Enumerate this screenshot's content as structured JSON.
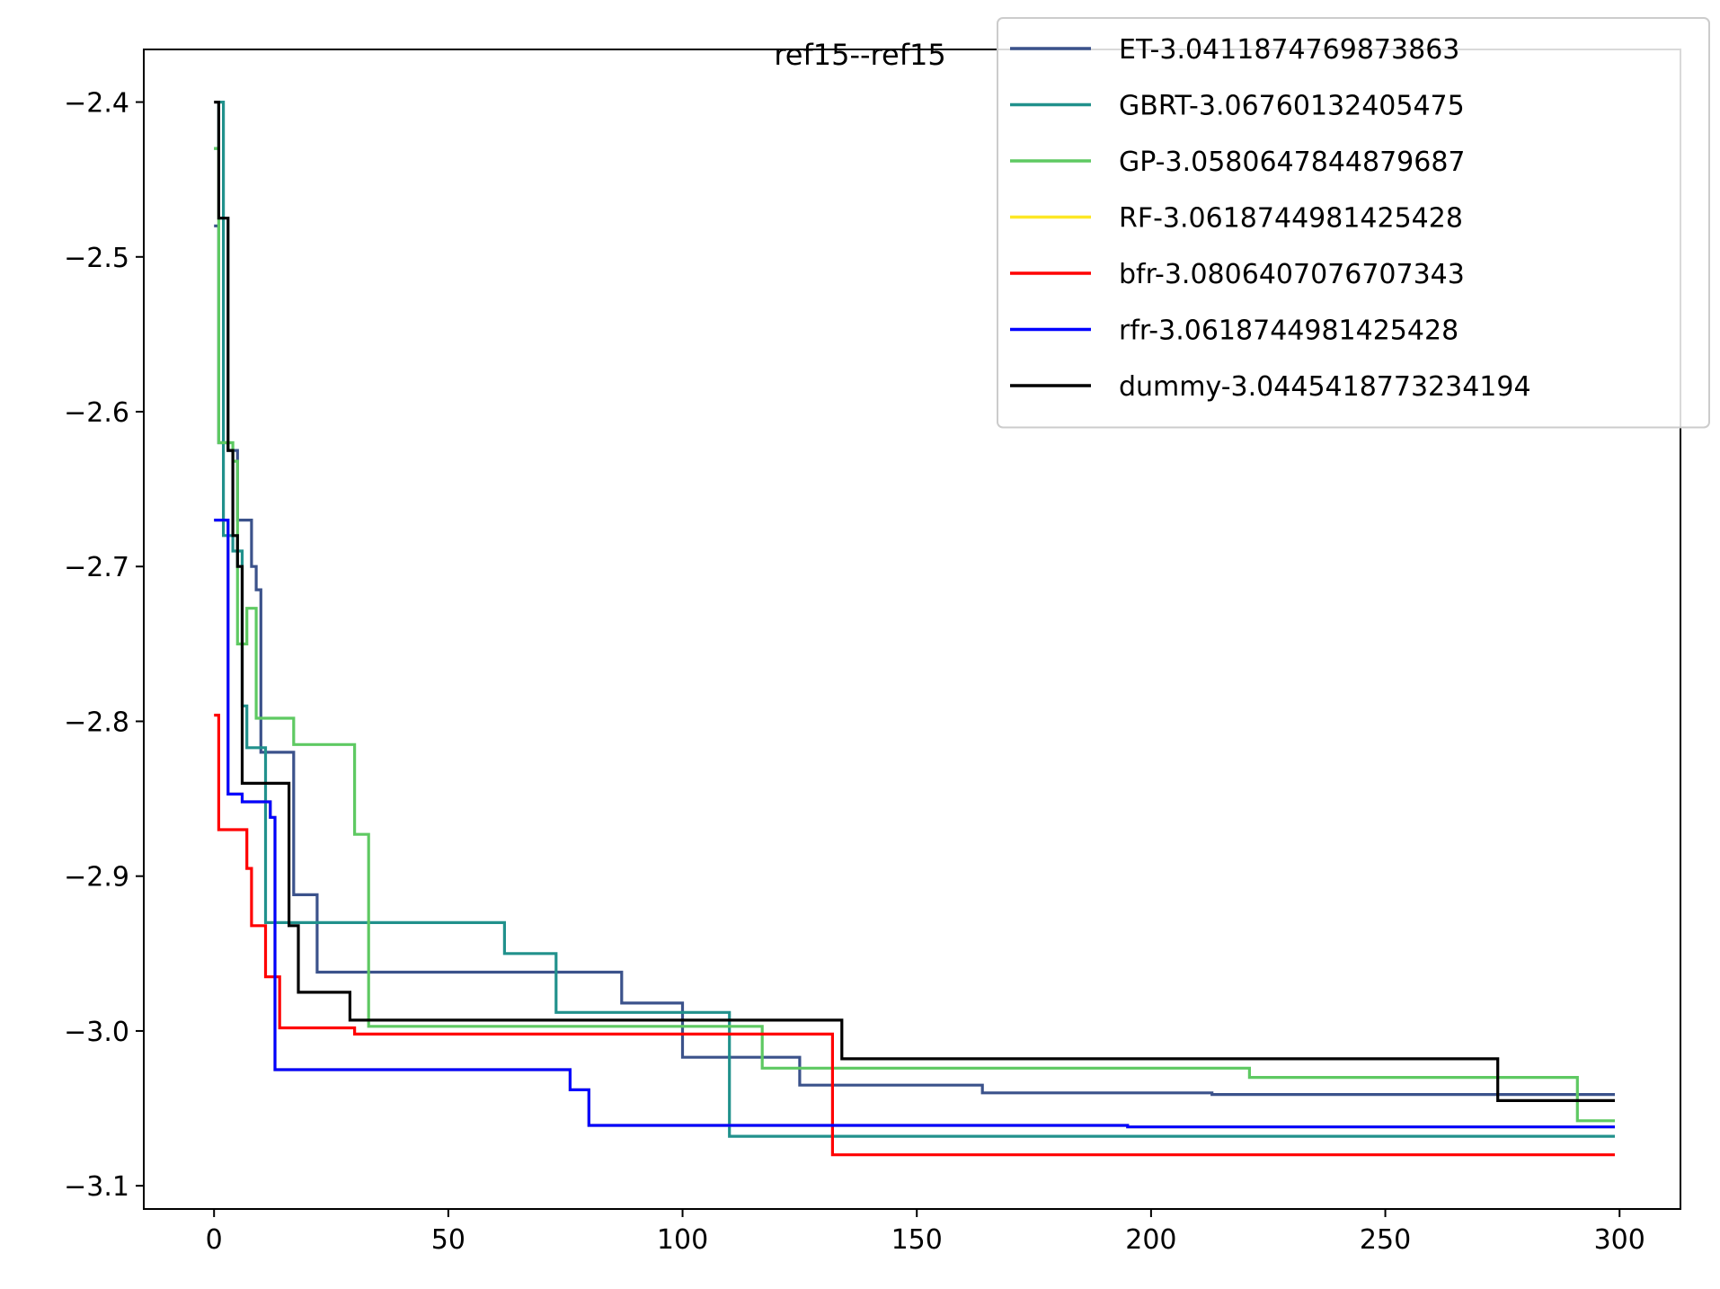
{
  "chart_data": {
    "type": "line",
    "title": "ref15--ref15",
    "xlabel": "",
    "ylabel": "",
    "xlim": [
      -15,
      313
    ],
    "ylim": [
      -3.115,
      -2.366
    ],
    "xticks": [
      0,
      50,
      100,
      150,
      200,
      250,
      300
    ],
    "xtick_labels": [
      "0",
      "50",
      "100",
      "150",
      "200",
      "250",
      "300"
    ],
    "yticks": [
      -2.4,
      -2.5,
      -2.6,
      -2.7,
      -2.8,
      -2.9,
      -3.0,
      -3.1
    ],
    "ytick_labels": [
      "−2.4",
      "−2.5",
      "−2.6",
      "−2.7",
      "−2.8",
      "−2.9",
      "−3.0",
      "−3.1"
    ],
    "grid": false,
    "legend_position": "top-right",
    "series": [
      {
        "name": "ET-3.0411874769873863",
        "color": "#3b528b",
        "step": true,
        "points": [
          [
            0,
            -2.48
          ],
          [
            1,
            -2.62
          ],
          [
            3,
            -2.625
          ],
          [
            5,
            -2.67
          ],
          [
            7,
            -2.67
          ],
          [
            8,
            -2.7
          ],
          [
            9,
            -2.715
          ],
          [
            10,
            -2.82
          ],
          [
            16,
            -2.82
          ],
          [
            17,
            -2.912
          ],
          [
            21,
            -2.912
          ],
          [
            22,
            -2.962
          ],
          [
            86,
            -2.962
          ],
          [
            87,
            -2.982
          ],
          [
            99,
            -2.982
          ],
          [
            100,
            -3.017
          ],
          [
            124,
            -3.017
          ],
          [
            125,
            -3.035
          ],
          [
            163,
            -3.035
          ],
          [
            164,
            -3.04
          ],
          [
            212,
            -3.04
          ],
          [
            213,
            -3.041
          ],
          [
            299,
            -3.041
          ]
        ]
      },
      {
        "name": "GBRT-3.06760132405475",
        "color": "#21918c",
        "step": true,
        "points": [
          [
            0,
            -2.43
          ],
          [
            1,
            -2.4
          ],
          [
            2,
            -2.68
          ],
          [
            4,
            -2.69
          ],
          [
            6,
            -2.79
          ],
          [
            7,
            -2.817
          ],
          [
            10,
            -2.817
          ],
          [
            11,
            -2.93
          ],
          [
            61,
            -2.93
          ],
          [
            62,
            -2.95
          ],
          [
            72,
            -2.95
          ],
          [
            73,
            -2.988
          ],
          [
            109,
            -2.988
          ],
          [
            110,
            -3.068
          ],
          [
            299,
            -3.068
          ]
        ]
      },
      {
        "name": "GP-3.0580647844879687",
        "color": "#5ec962",
        "step": true,
        "points": [
          [
            0,
            -2.43
          ],
          [
            1,
            -2.62
          ],
          [
            3,
            -2.62
          ],
          [
            4,
            -2.632
          ],
          [
            5,
            -2.75
          ],
          [
            6,
            -2.75
          ],
          [
            7,
            -2.727
          ],
          [
            9,
            -2.798
          ],
          [
            16,
            -2.798
          ],
          [
            17,
            -2.815
          ],
          [
            29,
            -2.815
          ],
          [
            30,
            -2.873
          ],
          [
            32,
            -2.873
          ],
          [
            33,
            -2.997
          ],
          [
            116,
            -2.997
          ],
          [
            117,
            -3.024
          ],
          [
            220,
            -3.024
          ],
          [
            221,
            -3.03
          ],
          [
            290,
            -3.03
          ],
          [
            291,
            -3.058
          ],
          [
            299,
            -3.058
          ]
        ]
      },
      {
        "name": "RF-3.0618744981425428",
        "color": "#fde725",
        "step": true,
        "points": [
          [
            0,
            -2.67
          ],
          [
            2,
            -2.67
          ],
          [
            3,
            -2.847
          ],
          [
            6,
            -2.852
          ],
          [
            11,
            -2.852
          ],
          [
            12,
            -2.862
          ],
          [
            13,
            -3.025
          ],
          [
            75,
            -3.025
          ],
          [
            76,
            -3.038
          ],
          [
            79,
            -3.038
          ],
          [
            80,
            -3.061
          ],
          [
            194,
            -3.061
          ],
          [
            195,
            -3.062
          ],
          [
            299,
            -3.062
          ]
        ]
      },
      {
        "name": "bfr-3.0806407076707343",
        "color": "#ff0000",
        "step": true,
        "points": [
          [
            0,
            -2.796
          ],
          [
            1,
            -2.87
          ],
          [
            6,
            -2.87
          ],
          [
            7,
            -2.895
          ],
          [
            8,
            -2.932
          ],
          [
            10,
            -2.932
          ],
          [
            11,
            -2.965
          ],
          [
            13,
            -2.965
          ],
          [
            14,
            -2.998
          ],
          [
            28,
            -2.998
          ],
          [
            30,
            -3.002
          ],
          [
            131,
            -3.002
          ],
          [
            132,
            -3.08
          ],
          [
            299,
            -3.08
          ]
        ]
      },
      {
        "name": "rfr-3.0618744981425428",
        "color": "#0000ff",
        "step": true,
        "points": [
          [
            0,
            -2.67
          ],
          [
            2,
            -2.67
          ],
          [
            3,
            -2.847
          ],
          [
            6,
            -2.852
          ],
          [
            11,
            -2.852
          ],
          [
            12,
            -2.862
          ],
          [
            13,
            -3.025
          ],
          [
            75,
            -3.025
          ],
          [
            76,
            -3.038
          ],
          [
            79,
            -3.038
          ],
          [
            80,
            -3.061
          ],
          [
            194,
            -3.061
          ],
          [
            195,
            -3.062
          ],
          [
            299,
            -3.062
          ]
        ]
      },
      {
        "name": "dummy-3.0445418773234194",
        "color": "#000000",
        "step": true,
        "points": [
          [
            0,
            -2.4
          ],
          [
            1,
            -2.475
          ],
          [
            2,
            -2.475
          ],
          [
            3,
            -2.625
          ],
          [
            4,
            -2.68
          ],
          [
            5,
            -2.7
          ],
          [
            6,
            -2.84
          ],
          [
            15,
            -2.84
          ],
          [
            16,
            -2.932
          ],
          [
            17,
            -2.932
          ],
          [
            18,
            -2.975
          ],
          [
            28,
            -2.975
          ],
          [
            29,
            -2.993
          ],
          [
            133,
            -2.993
          ],
          [
            134,
            -3.018
          ],
          [
            273,
            -3.018
          ],
          [
            274,
            -3.045
          ],
          [
            299,
            -3.045
          ]
        ]
      }
    ]
  }
}
